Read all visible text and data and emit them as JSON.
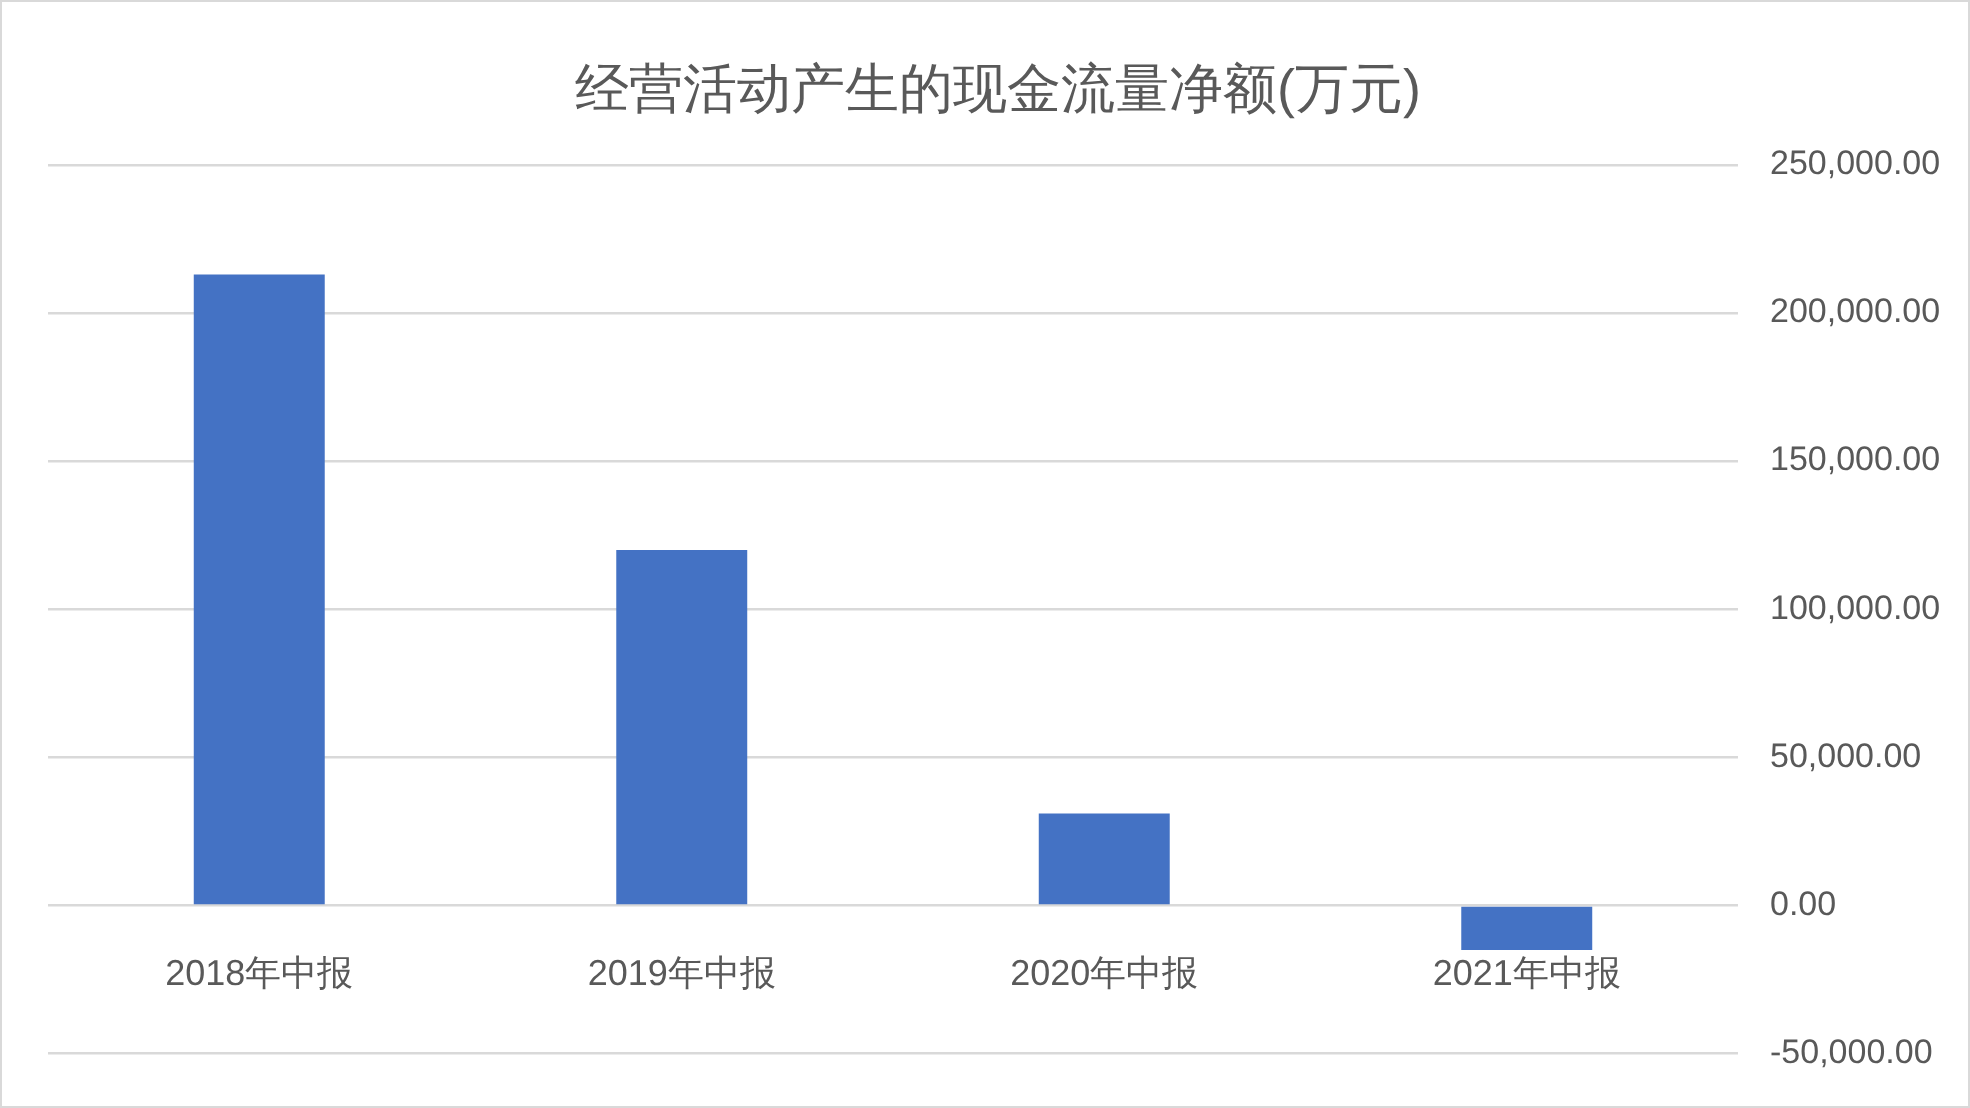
{
  "chart_data": {
    "type": "bar",
    "title": "经营活动产生的现金流量净额(万元)",
    "categories": [
      "2018年中报",
      "2019年中报",
      "2020年中报",
      "2021年中报"
    ],
    "values": [
      213000,
      120000,
      31000,
      -15000
    ],
    "color": "#4472c4",
    "ylim": [
      -50000,
      250000
    ],
    "yticks": [
      {
        "value": -50000,
        "label": "-50,000.00"
      },
      {
        "value": 0,
        "label": "0.00"
      },
      {
        "value": 50000,
        "label": "50,000.00"
      },
      {
        "value": 100000,
        "label": "100,000.00"
      },
      {
        "value": 150000,
        "label": "150,000.00"
      },
      {
        "value": 200000,
        "label": "200,000.00"
      },
      {
        "value": 250000,
        "label": "250,000.00"
      }
    ],
    "grid": "y"
  }
}
